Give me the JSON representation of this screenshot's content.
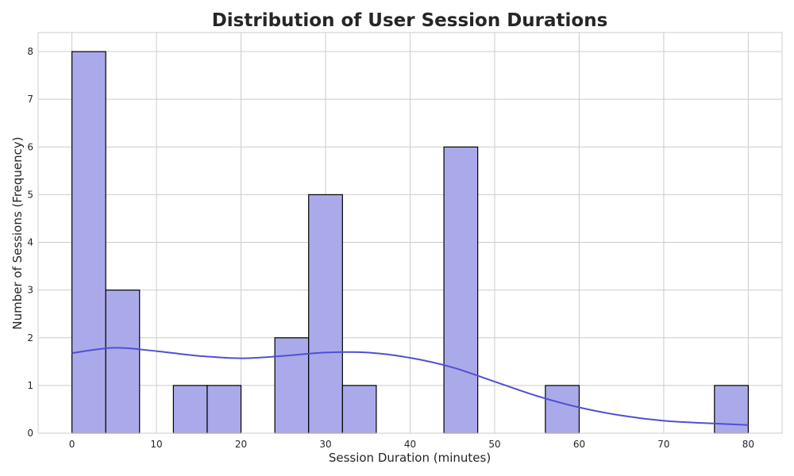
{
  "chart_data": {
    "type": "bar",
    "title": "Distribution of User Session Durations",
    "xlabel": "Session Duration (minutes)",
    "ylabel": "Number of Sessions (Frequency)",
    "xlim": [
      -4,
      84
    ],
    "ylim": [
      0,
      8.4
    ],
    "x_ticks": [
      0,
      10,
      20,
      30,
      40,
      50,
      60,
      70,
      80
    ],
    "y_ticks": [
      0,
      1,
      2,
      3,
      4,
      5,
      6,
      7,
      8
    ],
    "grid": true,
    "bin_edges": [
      0,
      4,
      8,
      12,
      16,
      20,
      24,
      28,
      32,
      36,
      40,
      44,
      48,
      52,
      56,
      60,
      64,
      68,
      72,
      76,
      80
    ],
    "values": [
      8,
      3,
      0,
      1,
      1,
      0,
      2,
      5,
      1,
      0,
      0,
      6,
      0,
      0,
      1,
      0,
      0,
      0,
      0,
      1
    ],
    "kde": {
      "x": [
        0,
        5,
        10,
        15,
        20,
        25,
        30,
        35,
        40,
        45,
        50,
        55,
        60,
        65,
        70,
        75,
        80
      ],
      "y": [
        1.68,
        1.79,
        1.72,
        1.62,
        1.57,
        1.62,
        1.69,
        1.69,
        1.58,
        1.38,
        1.08,
        0.78,
        0.54,
        0.37,
        0.26,
        0.21,
        0.17
      ]
    },
    "colors": {
      "bar_fill": "#aaaaeb",
      "bar_edge": "#000000",
      "kde_line": "#5050d2",
      "grid": "#cccccc"
    }
  }
}
